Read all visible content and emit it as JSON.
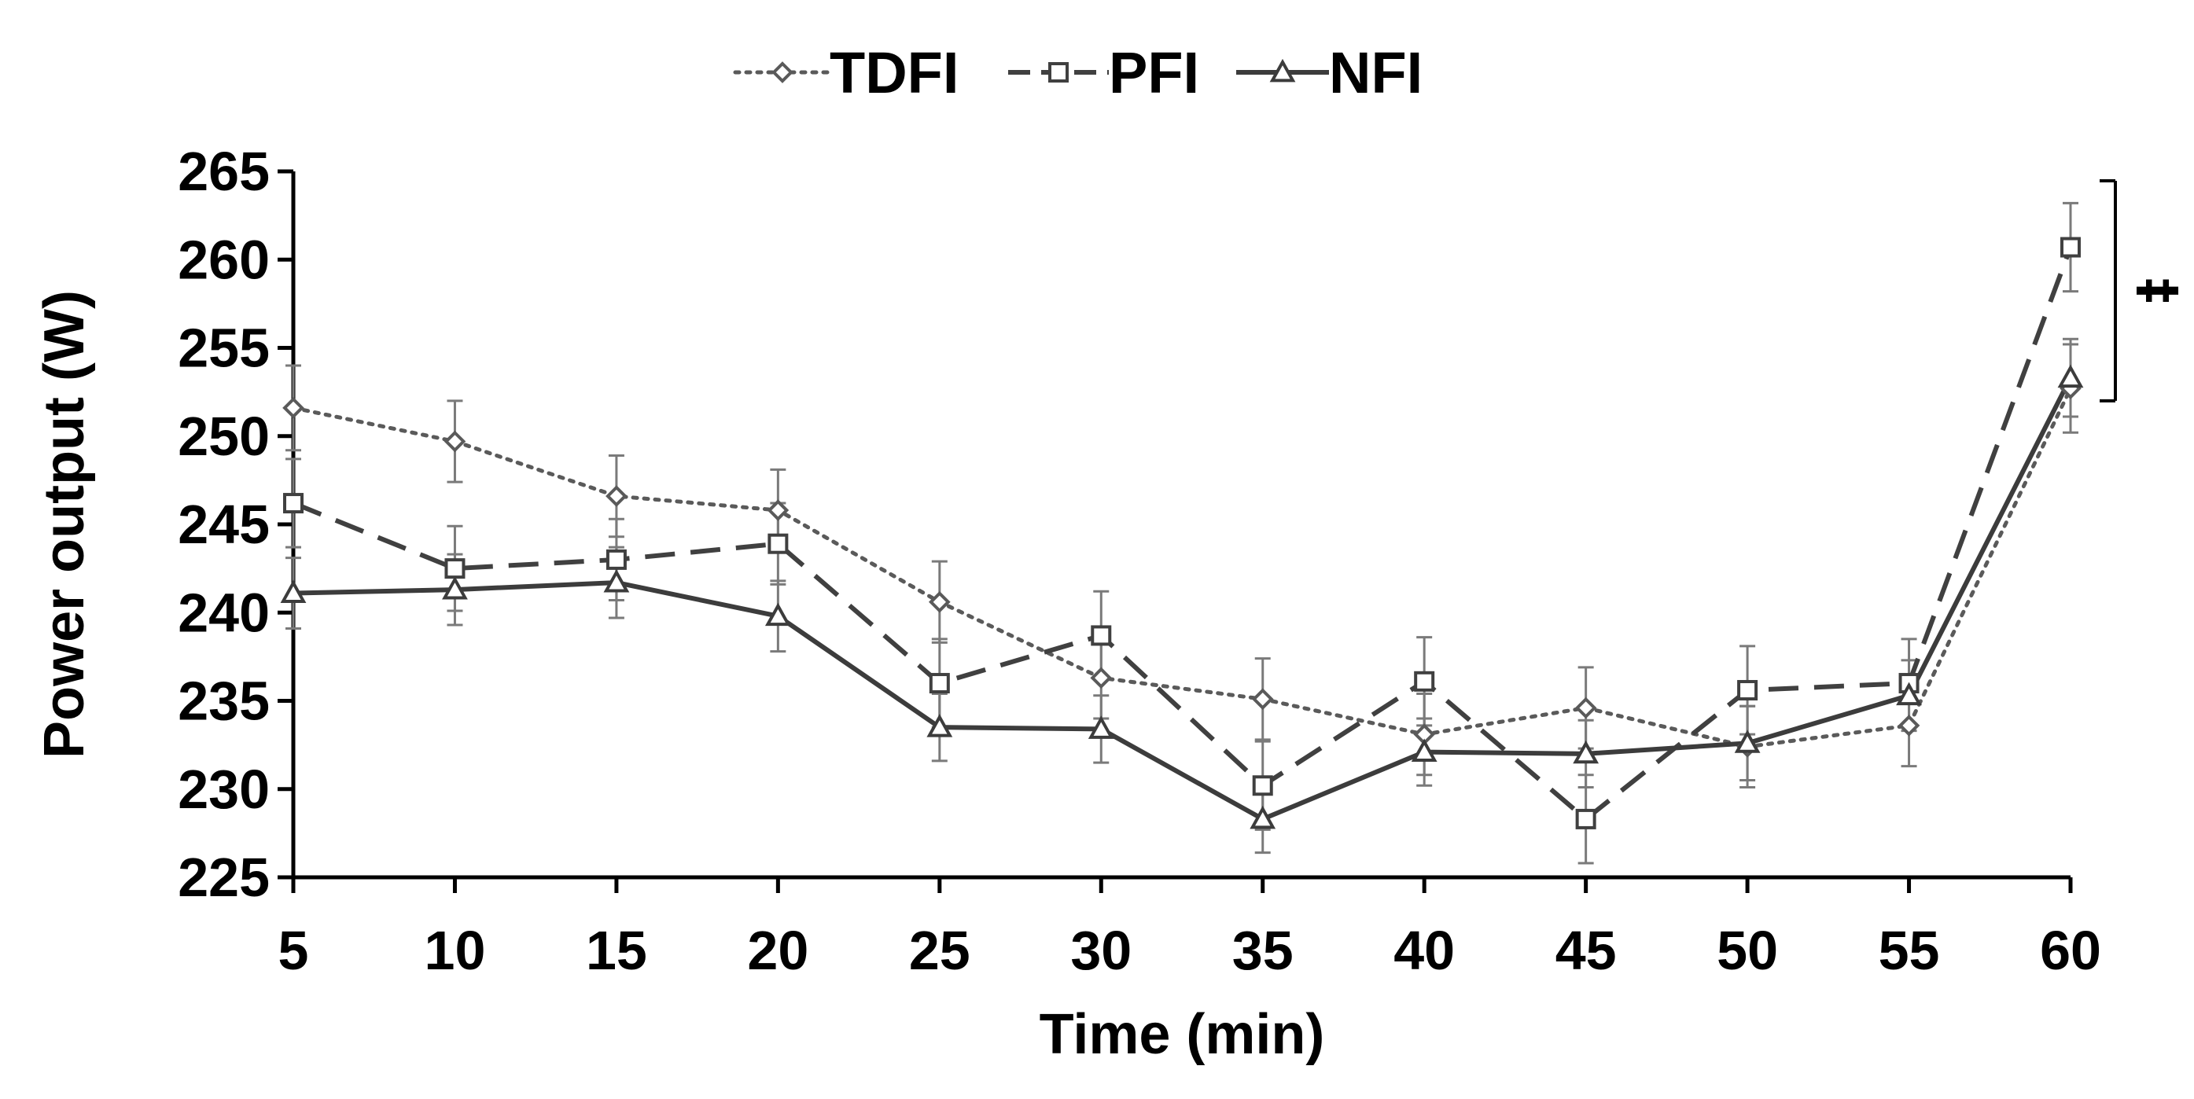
{
  "chart_data": {
    "type": "line",
    "title": "",
    "xlabel": "Time (min)",
    "ylabel": "Power output (W)",
    "x": [
      5,
      10,
      15,
      20,
      25,
      30,
      35,
      40,
      45,
      50,
      55,
      60
    ],
    "x_tick_labels": [
      "5",
      "10",
      "15",
      "20",
      "25",
      "30",
      "35",
      "40",
      "45",
      "50",
      "55",
      "60"
    ],
    "ylim": [
      225,
      265
    ],
    "y_ticks": [
      225,
      230,
      235,
      240,
      245,
      250,
      255,
      260,
      265
    ],
    "y_tick_labels": [
      "225",
      "230",
      "235",
      "240",
      "245",
      "250",
      "255",
      "260",
      "265"
    ],
    "grid": false,
    "legend_position": "top-center",
    "series": [
      {
        "name": "TDFI",
        "marker": "diamond",
        "line_style": "dotted",
        "color": "#5a5a5a",
        "values": [
          251.6,
          249.7,
          246.6,
          245.8,
          240.6,
          236.3,
          235.1,
          233.1,
          234.6,
          232.4,
          233.6,
          252.7
        ],
        "error": [
          2.4,
          2.3,
          2.3,
          2.3,
          2.3,
          2.3,
          2.3,
          2.3,
          2.3,
          2.3,
          2.3,
          2.5
        ]
      },
      {
        "name": "PFI",
        "marker": "square",
        "line_style": "dashed",
        "color": "#404040",
        "values": [
          246.2,
          242.5,
          243.0,
          243.9,
          236.0,
          238.7,
          230.2,
          236.1,
          228.3,
          235.6,
          236.0,
          260.7
        ],
        "error": [
          2.5,
          2.4,
          2.3,
          2.3,
          2.5,
          2.5,
          2.5,
          2.5,
          2.5,
          2.5,
          2.5,
          2.5
        ]
      },
      {
        "name": "NFI",
        "marker": "triangle",
        "line_style": "solid",
        "color": "#3c3c3c",
        "values": [
          241.1,
          241.3,
          241.7,
          239.8,
          233.5,
          233.4,
          228.3,
          232.1,
          232.0,
          232.6,
          235.3,
          253.3
        ],
        "error": [
          2.0,
          2.0,
          2.0,
          2.0,
          1.9,
          1.9,
          1.9,
          1.9,
          1.9,
          2.1,
          2.0,
          2.2
        ]
      }
    ],
    "annotations": [
      {
        "text": "‡",
        "x": 60,
        "y_range": [
          252,
          265
        ]
      }
    ]
  }
}
